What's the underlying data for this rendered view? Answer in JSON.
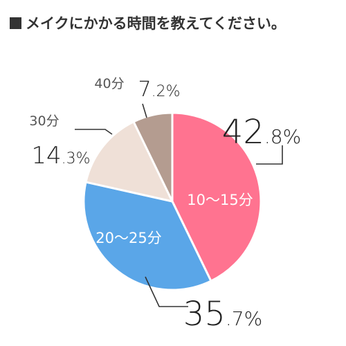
{
  "title": "メイクにかかる時間を教えてください。",
  "chart_data": {
    "type": "pie",
    "title": "メイクにかかる時間を教えてください。",
    "start_angle_deg": 0,
    "direction": "clockwise",
    "slices": [
      {
        "label": "10〜15分",
        "value": 42.8,
        "display": "42.8%",
        "color": "#ff7390",
        "label_placement": "inside"
      },
      {
        "label": "20〜25分",
        "value": 35.7,
        "display": "35.7%",
        "color": "#5aa6e8",
        "label_placement": "inside"
      },
      {
        "label": "30分",
        "value": 14.3,
        "display": "14.3%",
        "color": "#efe0d7",
        "label_placement": "outside"
      },
      {
        "label": "40分",
        "value": 7.2,
        "display": "7.2%",
        "color": "#b49c90",
        "label_placement": "outside"
      }
    ],
    "legend": "none"
  }
}
